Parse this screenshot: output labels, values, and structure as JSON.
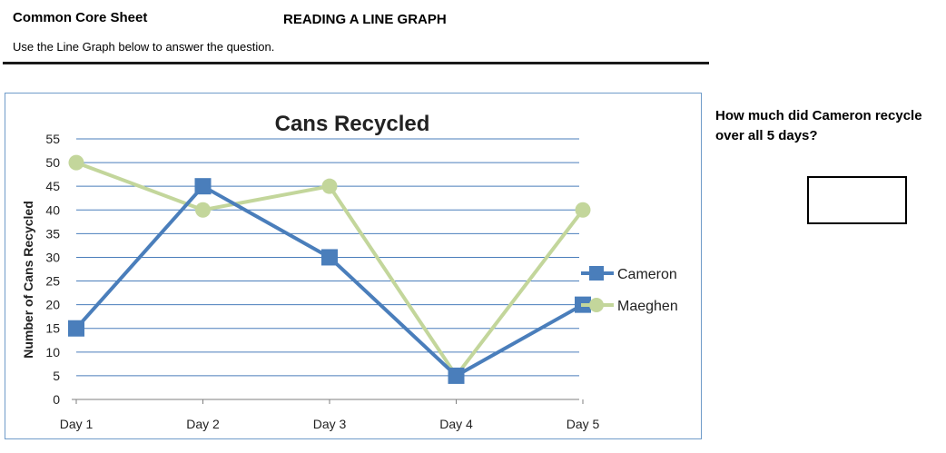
{
  "header": {
    "sheet_label": "Common Core Sheet",
    "worksheet_title": "READING A LINE GRAPH",
    "instructions": "Use the Line Graph below to answer the question."
  },
  "question": {
    "text": "How much did Cameron recycle over all 5 days?",
    "answer": ""
  },
  "colors": {
    "cameron": "#4a7ebb",
    "maeghen": "#c3d69b",
    "gridline": "#4a7ebb",
    "frame": "#6f9bc9"
  },
  "chart_data": {
    "type": "line",
    "title": "Cans Recycled",
    "xlabel": "",
    "ylabel": "Number of Cans Recycled",
    "categories": [
      "Day 1",
      "Day 2",
      "Day 3",
      "Day 4",
      "Day 5"
    ],
    "ylim": [
      0,
      55
    ],
    "yticks": [
      0,
      5,
      10,
      15,
      20,
      25,
      30,
      35,
      40,
      45,
      50,
      55
    ],
    "grid": true,
    "legend": "right",
    "series": [
      {
        "name": "Cameron",
        "marker": "square",
        "values": [
          15,
          45,
          30,
          5,
          20
        ]
      },
      {
        "name": "Maeghen",
        "marker": "circle",
        "values": [
          50,
          40,
          45,
          5,
          40
        ]
      }
    ]
  }
}
